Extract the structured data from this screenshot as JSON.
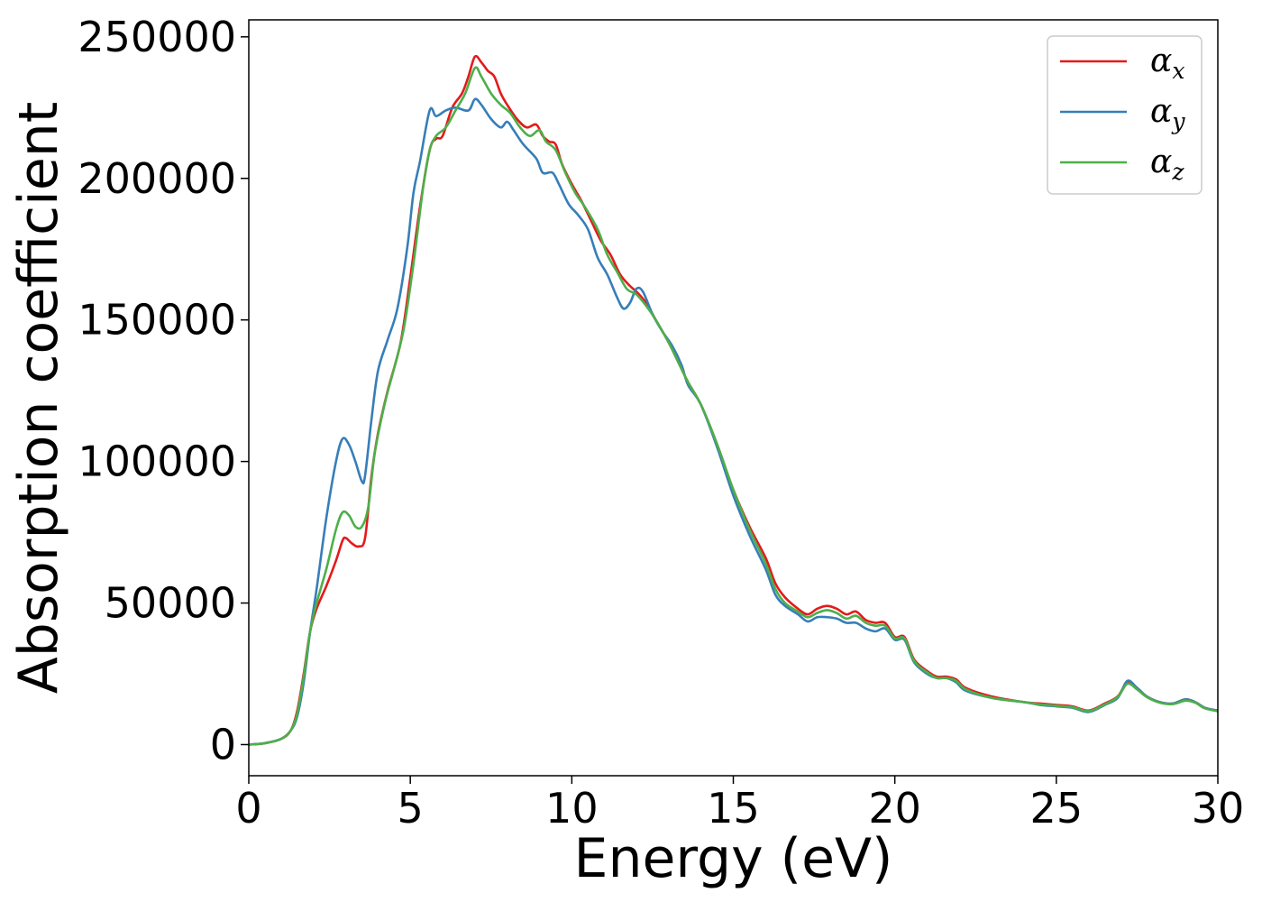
{
  "chart_data": {
    "type": "line",
    "xlabel": "Energy (eV)",
    "ylabel": "Absorption coefficient",
    "xlim": [
      0,
      30
    ],
    "ylim": [
      -11000,
      256000
    ],
    "xticks": [
      0,
      5,
      10,
      15,
      20,
      25,
      30
    ],
    "yticks": [
      0,
      50000,
      100000,
      150000,
      200000,
      250000
    ],
    "xtick_labels": [
      "0",
      "5",
      "10",
      "15",
      "20",
      "25",
      "30"
    ],
    "ytick_labels": [
      "0",
      "50000",
      "100000",
      "150000",
      "200000",
      "250000"
    ],
    "grid": false,
    "legend_position": "top-right",
    "series": [
      {
        "name": "αx",
        "symbol": "α",
        "subscript": "x",
        "color": "#e41a1c",
        "points": [
          [
            0,
            0
          ],
          [
            0.5,
            500
          ],
          [
            1,
            2000
          ],
          [
            1.3,
            5000
          ],
          [
            1.5,
            12000
          ],
          [
            1.7,
            25000
          ],
          [
            1.9,
            40000
          ],
          [
            2.1,
            48000
          ],
          [
            2.4,
            56000
          ],
          [
            2.7,
            65000
          ],
          [
            2.9,
            72000
          ],
          [
            3.0,
            73000
          ],
          [
            3.2,
            71000
          ],
          [
            3.4,
            70000
          ],
          [
            3.6,
            73000
          ],
          [
            3.8,
            95000
          ],
          [
            4.0,
            110000
          ],
          [
            4.3,
            125000
          ],
          [
            4.7,
            142000
          ],
          [
            5.0,
            165000
          ],
          [
            5.3,
            190000
          ],
          [
            5.6,
            210000
          ],
          [
            5.8,
            214000
          ],
          [
            6.0,
            215000
          ],
          [
            6.3,
            225000
          ],
          [
            6.6,
            230000
          ],
          [
            6.8,
            236000
          ],
          [
            7.0,
            243000
          ],
          [
            7.2,
            241000
          ],
          [
            7.4,
            238000
          ],
          [
            7.6,
            236000
          ],
          [
            7.8,
            230000
          ],
          [
            8.0,
            226000
          ],
          [
            8.3,
            221000
          ],
          [
            8.6,
            218000
          ],
          [
            8.9,
            219000
          ],
          [
            9.1,
            215000
          ],
          [
            9.3,
            213000
          ],
          [
            9.5,
            212000
          ],
          [
            9.7,
            205000
          ],
          [
            10.0,
            198000
          ],
          [
            10.3,
            192000
          ],
          [
            10.6,
            185000
          ],
          [
            10.9,
            178000
          ],
          [
            11.2,
            173000
          ],
          [
            11.5,
            166000
          ],
          [
            11.8,
            162000
          ],
          [
            12.0,
            160000
          ],
          [
            12.3,
            156000
          ],
          [
            12.6,
            150000
          ],
          [
            13.0,
            142000
          ],
          [
            13.3,
            135000
          ],
          [
            13.6,
            128000
          ],
          [
            14.0,
            120000
          ],
          [
            14.5,
            106000
          ],
          [
            15.0,
            90000
          ],
          [
            15.5,
            77000
          ],
          [
            16.0,
            66000
          ],
          [
            16.3,
            57000
          ],
          [
            16.6,
            52000
          ],
          [
            17.0,
            48000
          ],
          [
            17.3,
            46000
          ],
          [
            17.6,
            48000
          ],
          [
            17.9,
            49000
          ],
          [
            18.2,
            48000
          ],
          [
            18.5,
            46000
          ],
          [
            18.8,
            47000
          ],
          [
            19.1,
            44000
          ],
          [
            19.4,
            43000
          ],
          [
            19.7,
            43000
          ],
          [
            20.0,
            38000
          ],
          [
            20.3,
            38000
          ],
          [
            20.6,
            30000
          ],
          [
            21.0,
            26000
          ],
          [
            21.3,
            24000
          ],
          [
            21.6,
            24000
          ],
          [
            21.9,
            23000
          ],
          [
            22.2,
            20000
          ],
          [
            23.0,
            17000
          ],
          [
            24.0,
            15000
          ],
          [
            24.5,
            14500
          ],
          [
            25.0,
            14000
          ],
          [
            25.5,
            13500
          ],
          [
            26.0,
            12000
          ],
          [
            26.5,
            14500
          ],
          [
            26.9,
            17000
          ],
          [
            27.2,
            22000
          ],
          [
            27.5,
            20000
          ],
          [
            27.8,
            17000
          ],
          [
            28.2,
            15000
          ],
          [
            28.6,
            14500
          ],
          [
            29.0,
            16000
          ],
          [
            29.3,
            15000
          ],
          [
            29.6,
            13000
          ],
          [
            30.0,
            12000
          ]
        ]
      },
      {
        "name": "αy",
        "symbol": "α",
        "subscript": "y",
        "color": "#377eb8",
        "points": [
          [
            0,
            0
          ],
          [
            0.5,
            500
          ],
          [
            1,
            2000
          ],
          [
            1.3,
            5000
          ],
          [
            1.5,
            10000
          ],
          [
            1.7,
            22000
          ],
          [
            1.9,
            40000
          ],
          [
            2.1,
            55000
          ],
          [
            2.4,
            80000
          ],
          [
            2.7,
            100000
          ],
          [
            2.9,
            108000
          ],
          [
            3.1,
            106000
          ],
          [
            3.3,
            100000
          ],
          [
            3.5,
            93000
          ],
          [
            3.6,
            95000
          ],
          [
            3.8,
            115000
          ],
          [
            4.0,
            132000
          ],
          [
            4.3,
            143000
          ],
          [
            4.6,
            154000
          ],
          [
            4.9,
            175000
          ],
          [
            5.1,
            195000
          ],
          [
            5.3,
            206000
          ],
          [
            5.6,
            224000
          ],
          [
            5.8,
            222000
          ],
          [
            6.1,
            224000
          ],
          [
            6.4,
            225000
          ],
          [
            6.8,
            224000
          ],
          [
            7.0,
            228000
          ],
          [
            7.2,
            226000
          ],
          [
            7.5,
            221000
          ],
          [
            7.8,
            218000
          ],
          [
            8.0,
            220000
          ],
          [
            8.2,
            217000
          ],
          [
            8.5,
            212000
          ],
          [
            8.9,
            207000
          ],
          [
            9.1,
            202000
          ],
          [
            9.4,
            202000
          ],
          [
            9.6,
            198000
          ],
          [
            9.9,
            191000
          ],
          [
            10.2,
            187000
          ],
          [
            10.5,
            182000
          ],
          [
            10.8,
            172000
          ],
          [
            11.1,
            166000
          ],
          [
            11.4,
            158000
          ],
          [
            11.6,
            154000
          ],
          [
            11.8,
            156000
          ],
          [
            12.0,
            161000
          ],
          [
            12.2,
            160000
          ],
          [
            12.5,
            152000
          ],
          [
            12.8,
            146000
          ],
          [
            13.1,
            141000
          ],
          [
            13.4,
            134000
          ],
          [
            13.6,
            127000
          ],
          [
            14.0,
            120000
          ],
          [
            14.5,
            105000
          ],
          [
            15.0,
            88000
          ],
          [
            15.5,
            74000
          ],
          [
            16.0,
            62000
          ],
          [
            16.3,
            53000
          ],
          [
            16.6,
            49000
          ],
          [
            17.0,
            46000
          ],
          [
            17.3,
            43500
          ],
          [
            17.6,
            45000
          ],
          [
            17.9,
            45000
          ],
          [
            18.2,
            44500
          ],
          [
            18.5,
            43000
          ],
          [
            18.8,
            43000
          ],
          [
            19.1,
            41000
          ],
          [
            19.4,
            40000
          ],
          [
            19.7,
            41000
          ],
          [
            20.0,
            37000
          ],
          [
            20.3,
            37000
          ],
          [
            20.6,
            29000
          ],
          [
            21.0,
            25000
          ],
          [
            21.3,
            23500
          ],
          [
            21.6,
            23500
          ],
          [
            21.9,
            22000
          ],
          [
            22.2,
            19000
          ],
          [
            23.0,
            16500
          ],
          [
            24.0,
            15000
          ],
          [
            24.5,
            14000
          ],
          [
            25.0,
            13500
          ],
          [
            25.5,
            13000
          ],
          [
            26.0,
            11500
          ],
          [
            26.5,
            14000
          ],
          [
            26.9,
            16500
          ],
          [
            27.2,
            22500
          ],
          [
            27.5,
            20000
          ],
          [
            27.8,
            17000
          ],
          [
            28.2,
            15000
          ],
          [
            28.6,
            14500
          ],
          [
            29.0,
            16000
          ],
          [
            29.3,
            15000
          ],
          [
            29.6,
            13000
          ],
          [
            30.0,
            12000
          ]
        ]
      },
      {
        "name": "αz",
        "symbol": "α",
        "subscript": "z",
        "color": "#4daf4a",
        "points": [
          [
            0,
            0
          ],
          [
            0.5,
            500
          ],
          [
            1,
            2000
          ],
          [
            1.3,
            5000
          ],
          [
            1.5,
            11000
          ],
          [
            1.7,
            24000
          ],
          [
            1.9,
            40000
          ],
          [
            2.1,
            50000
          ],
          [
            2.4,
            62000
          ],
          [
            2.7,
            76000
          ],
          [
            2.9,
            82000
          ],
          [
            3.1,
            81000
          ],
          [
            3.3,
            77000
          ],
          [
            3.5,
            77000
          ],
          [
            3.7,
            84000
          ],
          [
            3.9,
            103000
          ],
          [
            4.2,
            120000
          ],
          [
            4.5,
            133000
          ],
          [
            4.8,
            147000
          ],
          [
            5.1,
            170000
          ],
          [
            5.4,
            197000
          ],
          [
            5.6,
            210000
          ],
          [
            5.8,
            215000
          ],
          [
            6.1,
            218000
          ],
          [
            6.4,
            224000
          ],
          [
            6.7,
            230000
          ],
          [
            7.0,
            239000
          ],
          [
            7.2,
            236000
          ],
          [
            7.5,
            230000
          ],
          [
            7.8,
            226000
          ],
          [
            8.1,
            223000
          ],
          [
            8.4,
            218000
          ],
          [
            8.7,
            215000
          ],
          [
            9.0,
            217000
          ],
          [
            9.2,
            213000
          ],
          [
            9.5,
            210000
          ],
          [
            9.8,
            202000
          ],
          [
            10.1,
            195000
          ],
          [
            10.4,
            190000
          ],
          [
            10.8,
            182000
          ],
          [
            11.1,
            173000
          ],
          [
            11.4,
            167000
          ],
          [
            11.7,
            161000
          ],
          [
            12.0,
            159000
          ],
          [
            12.3,
            155000
          ],
          [
            12.6,
            150000
          ],
          [
            13.0,
            142000
          ],
          [
            13.3,
            135000
          ],
          [
            13.6,
            128000
          ],
          [
            14.0,
            120000
          ],
          [
            14.5,
            106000
          ],
          [
            15.0,
            90000
          ],
          [
            15.5,
            76000
          ],
          [
            16.0,
            64000
          ],
          [
            16.3,
            55000
          ],
          [
            16.6,
            50000
          ],
          [
            17.0,
            47000
          ],
          [
            17.3,
            45000
          ],
          [
            17.6,
            46500
          ],
          [
            17.9,
            47500
          ],
          [
            18.2,
            46500
          ],
          [
            18.5,
            44500
          ],
          [
            18.8,
            45500
          ],
          [
            19.1,
            43000
          ],
          [
            19.4,
            42000
          ],
          [
            19.7,
            42000
          ],
          [
            20.0,
            37500
          ],
          [
            20.3,
            37500
          ],
          [
            20.6,
            29500
          ],
          [
            21.0,
            25500
          ],
          [
            21.3,
            23500
          ],
          [
            21.6,
            23500
          ],
          [
            21.9,
            22500
          ],
          [
            22.2,
            19500
          ],
          [
            23.0,
            16500
          ],
          [
            24.0,
            15000
          ],
          [
            24.5,
            14200
          ],
          [
            25.0,
            13700
          ],
          [
            25.5,
            13200
          ],
          [
            26.0,
            11800
          ],
          [
            26.5,
            14200
          ],
          [
            26.9,
            16800
          ],
          [
            27.2,
            21500
          ],
          [
            27.5,
            19500
          ],
          [
            27.8,
            16800
          ],
          [
            28.2,
            14800
          ],
          [
            28.6,
            14300
          ],
          [
            29.0,
            15500
          ],
          [
            29.3,
            14800
          ],
          [
            29.6,
            12800
          ],
          [
            30.0,
            11800
          ]
        ]
      }
    ]
  }
}
